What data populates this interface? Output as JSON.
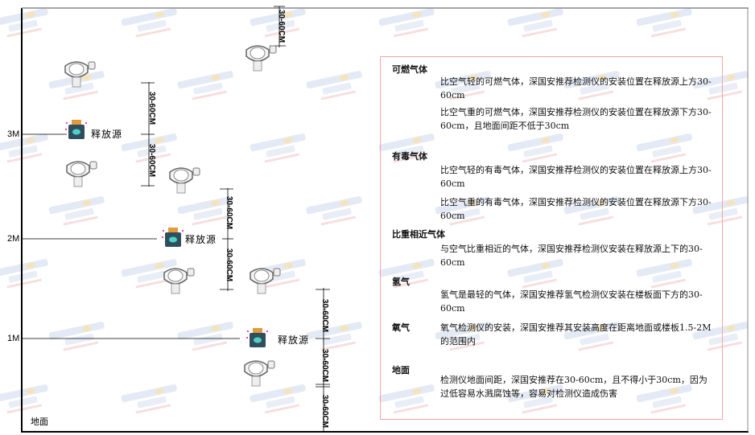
{
  "levels": {
    "m3": "3M",
    "m2": "2M",
    "m1": "1M",
    "ground": "地面"
  },
  "dimension_label": "30-60CM",
  "source_label": "释放源",
  "watermark": "SINGOAN 深国安",
  "colors": {
    "box_border": "#f2a6a6",
    "source_body": "#2f4f5f",
    "source_cap": "#e39a3b"
  },
  "panel": {
    "combustible": {
      "title": "可燃气体",
      "lighter": "比空气轻的可燃气体，深国安推荐检测仪的安装位置在释放源上方30-60cm",
      "heavier": "比空气重的可燃气体，深国安推荐检测仪的安装位置在释放源下方30-60cm，且地面间距不低于30cm"
    },
    "toxic": {
      "title": "有毒气体",
      "lighter": "比空气轻的有毒气体，深国安推荐检测仪的安装位置在释放源上方30-60cm",
      "heavier": "比空气重的有毒气体，深国安推荐检测仪的安装位置在释放源下方30-60cm"
    },
    "similar": {
      "title": "比重相近气体",
      "text": "与空气比重相近的气体，深国安推荐检测仪安装在释放源上下的30-60cm"
    },
    "hydrogen": {
      "title": "氢气",
      "text": "氢气是最轻的气体，深国安推荐氢气检测仪安装在楼板面下方的30-60cm"
    },
    "oxygen": {
      "title": "氧气",
      "text": "氧气检测仪的安装，深国安推荐其安装高度在距离地面或楼板1.5-2M的范围内"
    },
    "ground": {
      "title": "地面",
      "text": "检测仪地面间距，深国安推荐在30-60cm，且不得小于30cm，因为过低容易水溅腐蚀等，容易对检测仪造成伤害"
    }
  }
}
